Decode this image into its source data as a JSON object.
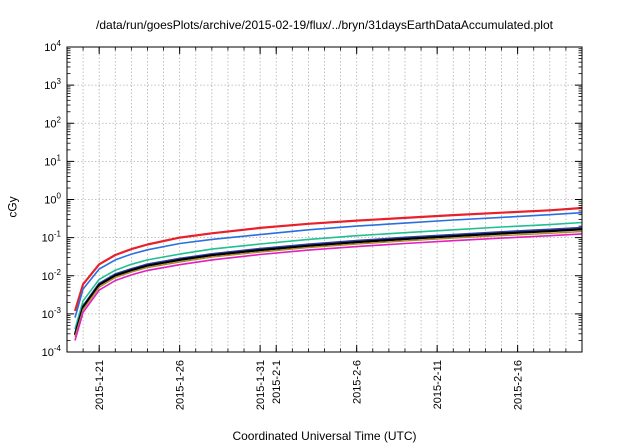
{
  "chart_data": {
    "type": "line",
    "title": "/data/run/goesPlots/archive/2015-02-19/flux/../bryn/31daysEarthDataAccumulated.plot",
    "xlabel": "Coordinated Universal Time (UTC)",
    "ylabel": "cGy",
    "y_scale": "log",
    "ylim": [
      0.0001,
      10000
    ],
    "xlim": [
      "2015-01-19",
      "2015-02-20"
    ],
    "grid": true,
    "x_ticks": [
      {
        "date": "2015-01-21",
        "label": "2015-1-21"
      },
      {
        "date": "2015-01-26",
        "label": "2015-1-26"
      },
      {
        "date": "2015-01-31",
        "label": "2015-1-31"
      },
      {
        "date": "2015-02-01",
        "label": "2015-2-1"
      },
      {
        "date": "2015-02-06",
        "label": "2015-2-6"
      },
      {
        "date": "2015-02-11",
        "label": "2015-2-11"
      },
      {
        "date": "2015-02-16",
        "label": "2015-2-16"
      }
    ],
    "y_ticks": [
      {
        "value": 0.0001,
        "base": "10",
        "exp": "-4"
      },
      {
        "value": 0.001,
        "base": "10",
        "exp": "-3"
      },
      {
        "value": 0.01,
        "base": "10",
        "exp": "-2"
      },
      {
        "value": 0.1,
        "base": "10",
        "exp": "-1"
      },
      {
        "value": 1,
        "base": "10",
        "exp": "0"
      },
      {
        "value": 10,
        "base": "10",
        "exp": "1"
      },
      {
        "value": 100,
        "base": "10",
        "exp": "2"
      },
      {
        "value": 1000,
        "base": "10",
        "exp": "3"
      },
      {
        "value": 10000,
        "base": "10",
        "exp": "4"
      }
    ],
    "x": [
      "2015-01-19T12:00",
      "2015-01-20",
      "2015-01-21",
      "2015-01-22",
      "2015-01-23",
      "2015-01-24",
      "2015-01-26",
      "2015-01-28",
      "2015-01-31",
      "2015-02-03",
      "2015-02-06",
      "2015-02-09",
      "2015-02-12",
      "2015-02-15",
      "2015-02-18",
      "2015-02-20"
    ],
    "series": [
      {
        "color": "#e8202a",
        "width": 2.2,
        "values": [
          0.0012,
          0.006,
          0.02,
          0.035,
          0.05,
          0.066,
          0.1,
          0.13,
          0.18,
          0.23,
          0.28,
          0.33,
          0.39,
          0.45,
          0.52,
          0.6
        ]
      },
      {
        "color": "#2a6fe0",
        "width": 1.6,
        "values": [
          0.0008,
          0.0045,
          0.015,
          0.026,
          0.037,
          0.048,
          0.07,
          0.09,
          0.12,
          0.16,
          0.2,
          0.24,
          0.29,
          0.34,
          0.4,
          0.45
        ]
      },
      {
        "color": "#20c090",
        "width": 1.6,
        "values": [
          0.0004,
          0.0022,
          0.008,
          0.014,
          0.02,
          0.026,
          0.037,
          0.05,
          0.068,
          0.09,
          0.112,
          0.135,
          0.16,
          0.19,
          0.22,
          0.25
        ]
      },
      {
        "color": "#3040a8",
        "width": 2.2,
        "values": [
          0.0003,
          0.0016,
          0.0062,
          0.011,
          0.015,
          0.02,
          0.028,
          0.037,
          0.051,
          0.066,
          0.082,
          0.1,
          0.118,
          0.14,
          0.162,
          0.18
        ]
      },
      {
        "color": "#000000",
        "width": 2.2,
        "values": [
          0.00028,
          0.0015,
          0.0058,
          0.0102,
          0.014,
          0.0185,
          0.026,
          0.0345,
          0.047,
          0.061,
          0.076,
          0.092,
          0.109,
          0.128,
          0.148,
          0.165
        ]
      },
      {
        "color": "#b08a2a",
        "width": 1.4,
        "values": [
          0.00025,
          0.0013,
          0.005,
          0.009,
          0.0125,
          0.0165,
          0.023,
          0.031,
          0.042,
          0.055,
          0.068,
          0.082,
          0.097,
          0.113,
          0.13,
          0.145
        ]
      },
      {
        "color": "#e020c0",
        "width": 1.6,
        "values": [
          0.0002,
          0.0011,
          0.0042,
          0.0075,
          0.0105,
          0.0138,
          0.0195,
          0.026,
          0.036,
          0.047,
          0.058,
          0.07,
          0.083,
          0.097,
          0.112,
          0.125
        ]
      }
    ]
  }
}
